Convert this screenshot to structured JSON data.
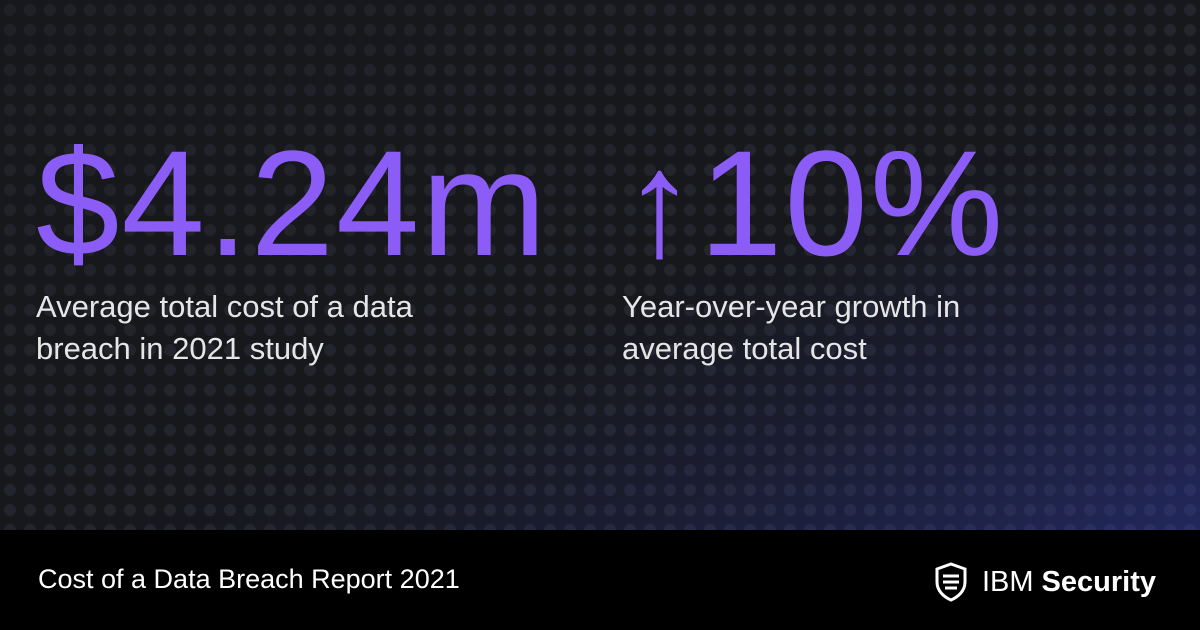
{
  "stats": [
    {
      "value": "$4.24m",
      "label_lines": [
        "Average total cost of a data",
        "breach in 2021 study"
      ]
    },
    {
      "value": "↑10%",
      "label_lines": [
        "Year-over-year growth in",
        "average total cost"
      ]
    }
  ],
  "footer": {
    "title": "Cost of a Data Breach Report 2021",
    "brand": "IBM",
    "brand_bold": "Security"
  }
}
